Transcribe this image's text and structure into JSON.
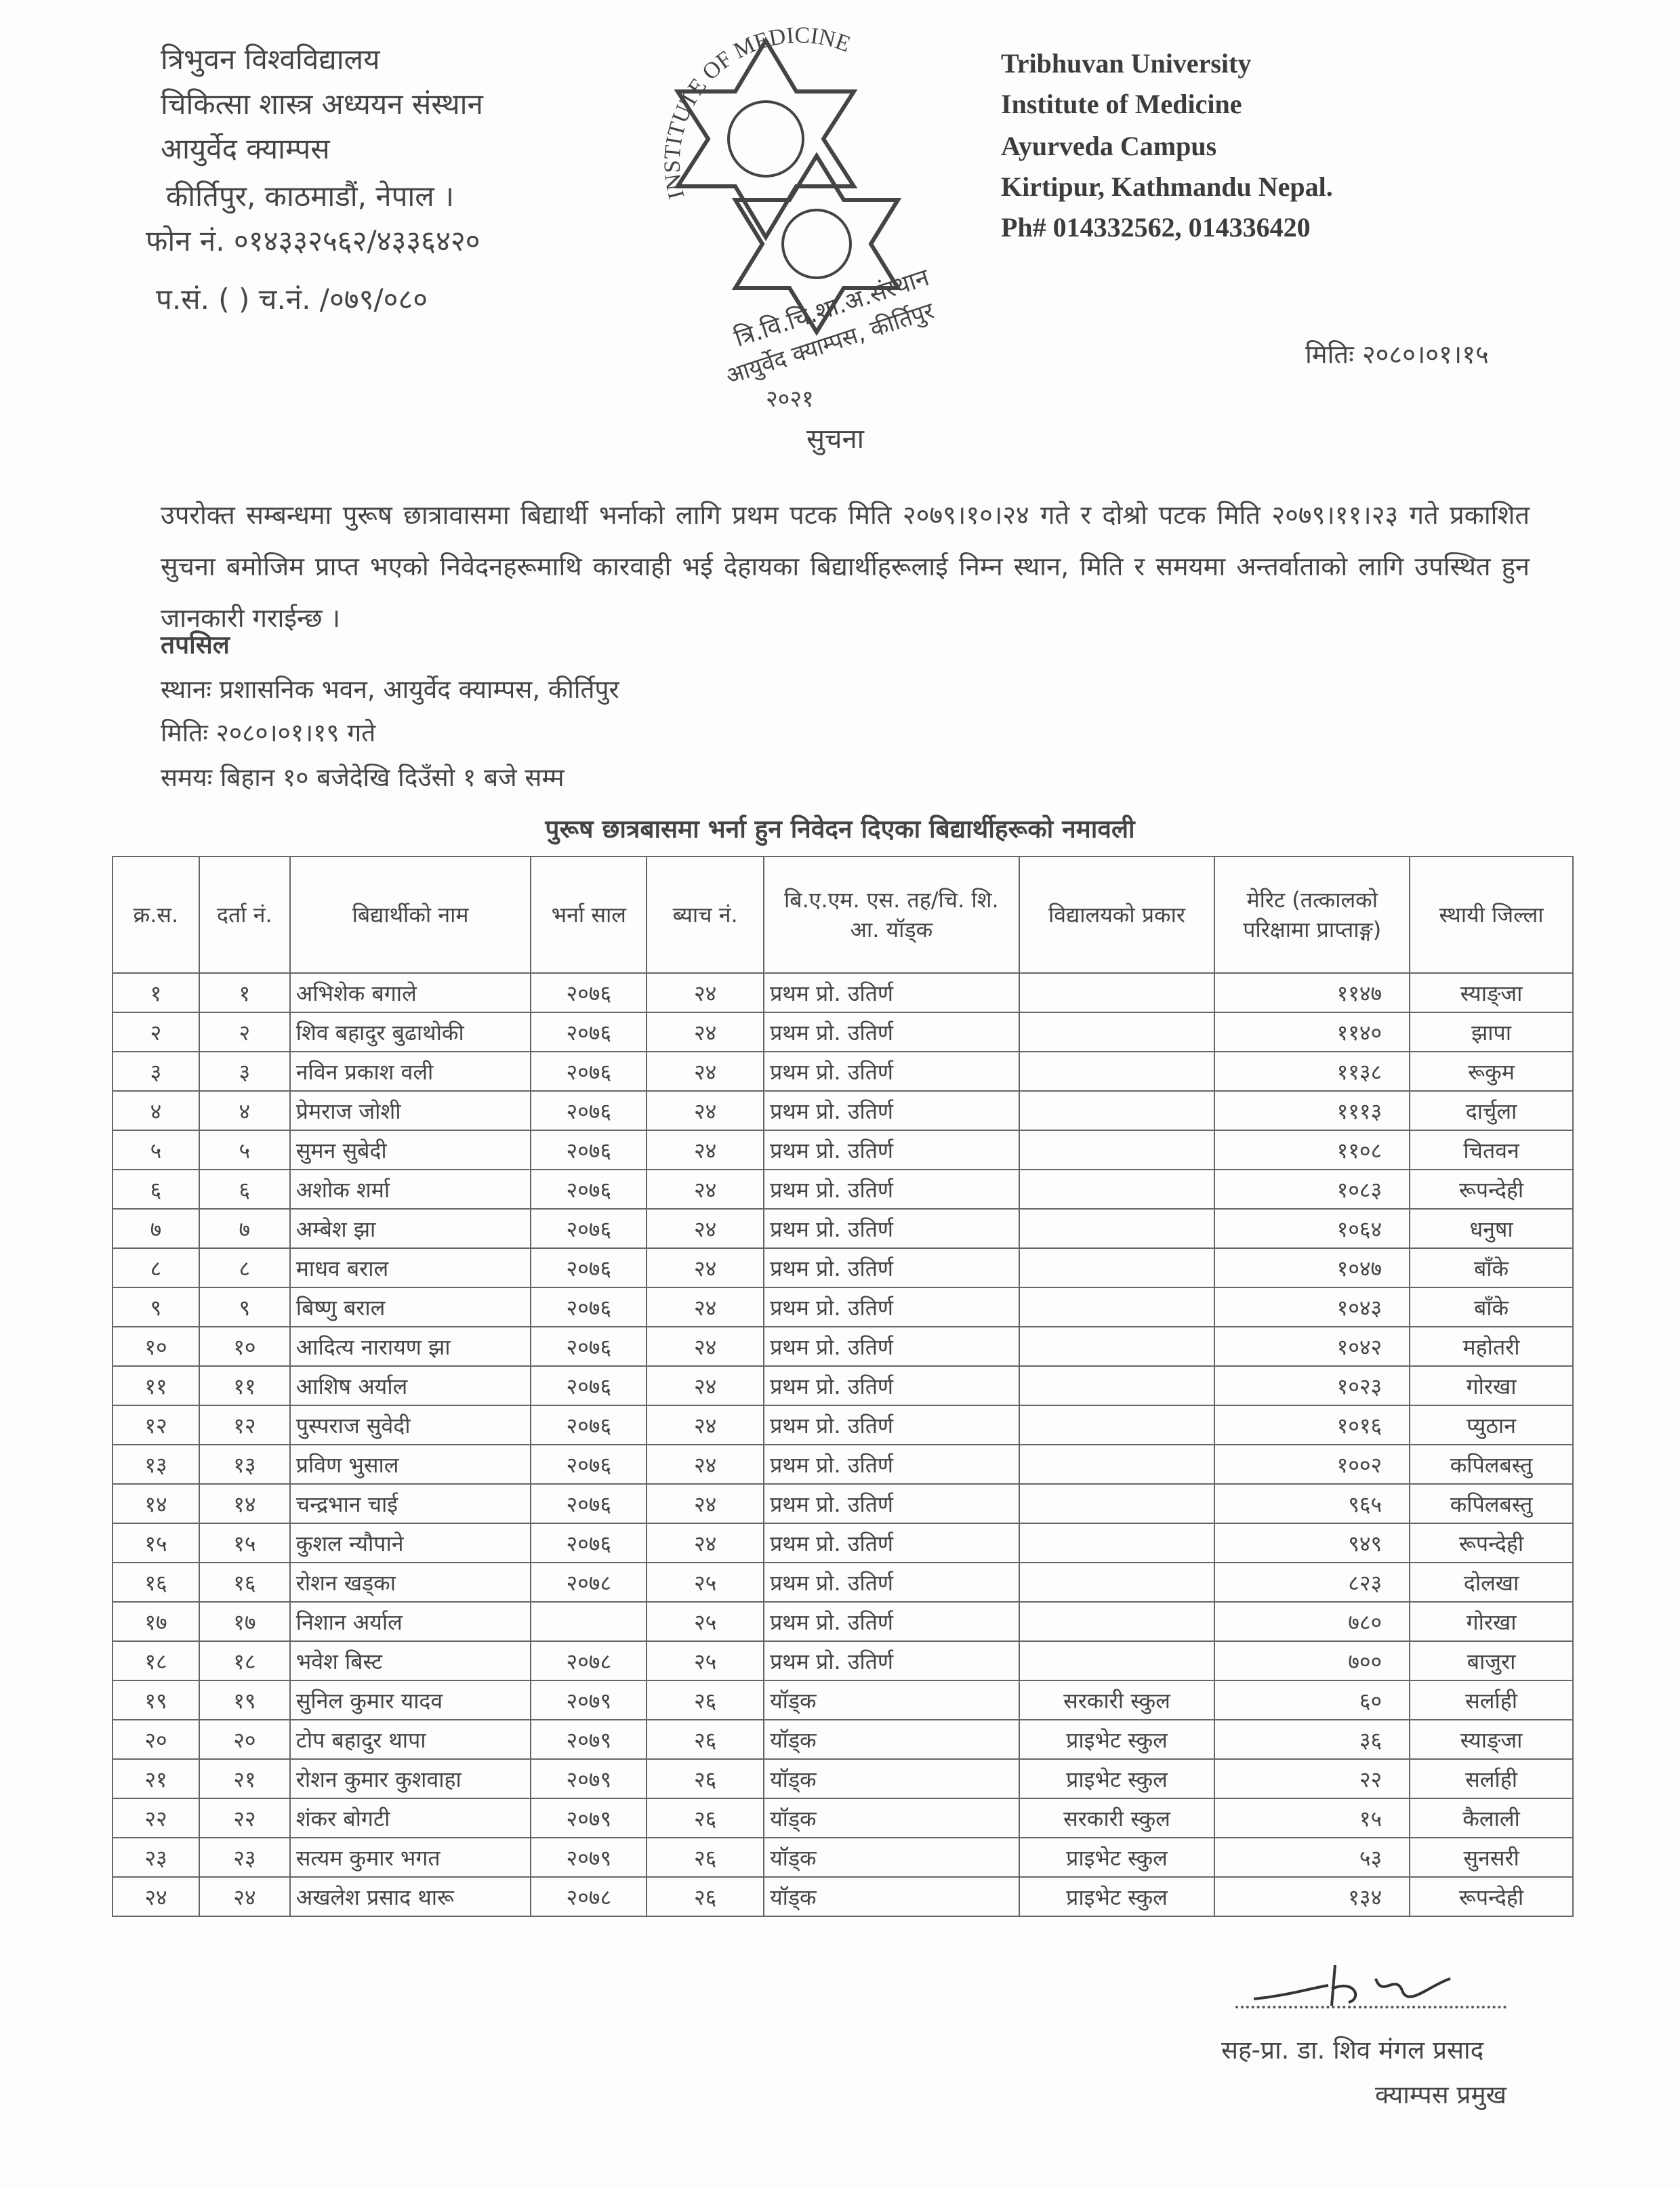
{
  "header_left": {
    "line1": "त्रिभुवन  विश्वविद्यालय",
    "line2": "चिकित्सा  शास्त्र  अध्ययन  संस्थान",
    "line3": "आयुर्वेद  क्याम्पस",
    "line4": "कीर्तिपुर,  काठमाडौं,  नेपाल  ।",
    "phone": "फोन  नं.  ०१४३३२५६२/४३३६४२०",
    "ref": "प.सं. (    ) च.नं.       /०७९/०८०"
  },
  "header_right": {
    "line1": "Tribhuvan University",
    "line2": "Institute of Medicine",
    "line3": "Ayurveda Campus",
    "line4": "Kirtipur, Kathmandu Nepal.",
    "phone": "Ph# 014332562, 014336420"
  },
  "logo": {
    "arc_text": "INSTITUTE OF MEDICINE",
    "stamp_line1": "त्रि.वि.चि.शा.अ.संस्थान",
    "stamp_line2": "आयुर्वेद क्याम्पस, कीर्तिपुर",
    "stamp_line3": "२०२१"
  },
  "date": "मितिः २०८०।०१।१५",
  "notice_title": "सुचना",
  "paragraph": "उपरोक्त सम्बन्धमा पुरूष छात्रावासमा बिद्यार्थी भर्नाको लागि प्रथम पटक मिति २०७९।१०।२४ गते र दोश्रो पटक मिति २०७९।११।२३ गते प्रकाशित सुचना बमोजिम प्राप्त भएको निवेदनहरूमाथि कारवाही भई देहायका बिद्यार्थीहरूलाई निम्न स्थान, मिति र समयमा अन्तर्वाताको लागि उपस्थित हुन जानकारी गराईन्छ ।",
  "details": {
    "heading": "तपसिल",
    "place": "स्थानः प्रशासनिक भवन, आयुर्वेद क्याम्पस, कीर्तिपुर",
    "date": "मितिः २०८०।०१।१९ गते",
    "time": "समयः बिहान १० बजेदेखि दिउँसो १ बजे सम्म"
  },
  "table": {
    "title": "पुरूष छात्रबासमा भर्ना हुन निवेदन दिएका बिद्यार्थीहरूको नमावली",
    "headers": [
      "क्र.स.",
      "दर्ता नं.",
      "बिद्यार्थीको नाम",
      "भर्ना साल",
      "ब्याच नं.",
      "बि.ए.एम. एस. तह/चि. शि. आ. यॉड्क",
      "विद्यालयको प्रकार",
      "मेरिट (तत्कालको परिक्षामा प्राप्ताङ्ग)",
      "स्थायी जिल्ला"
    ],
    "rows": [
      [
        "१",
        "१",
        "अभिशेक बगाले",
        "२०७६",
        "२४",
        "प्रथम प्रो. उतिर्ण",
        "",
        "११४७",
        "स्याङ्जा"
      ],
      [
        "२",
        "२",
        "शिव बहादुर बुढाथोकी",
        "२०७६",
        "२४",
        "प्रथम प्रो. उतिर्ण",
        "",
        "११४०",
        "झापा"
      ],
      [
        "३",
        "३",
        "नविन प्रकाश वली",
        "२०७६",
        "२४",
        "प्रथम प्रो. उतिर्ण",
        "",
        "११३८",
        "रूकुम"
      ],
      [
        "४",
        "४",
        "प्रेमराज जोशी",
        "२०७६",
        "२४",
        "प्रथम प्रो. उतिर्ण",
        "",
        "१११३",
        "दार्चुला"
      ],
      [
        "५",
        "५",
        "सुमन सुबेदी",
        "२०७६",
        "२४",
        "प्रथम प्रो. उतिर्ण",
        "",
        "११०८",
        "चितवन"
      ],
      [
        "६",
        "६",
        "अशोक शर्मा",
        "२०७६",
        "२४",
        "प्रथम प्रो. उतिर्ण",
        "",
        "१०८३",
        "रूपन्देही"
      ],
      [
        "७",
        "७",
        "अम्बेश झा",
        "२०७६",
        "२४",
        "प्रथम प्रो. उतिर्ण",
        "",
        "१०६४",
        "धनुषा"
      ],
      [
        "८",
        "८",
        "माधव बराल",
        "२०७६",
        "२४",
        "प्रथम प्रो. उतिर्ण",
        "",
        "१०४७",
        "बाँके"
      ],
      [
        "९",
        "९",
        "बिष्णु बराल",
        "२०७६",
        "२४",
        "प्रथम प्रो. उतिर्ण",
        "",
        "१०४३",
        "बाँके"
      ],
      [
        "१०",
        "१०",
        "आदित्य नारायण झा",
        "२०७६",
        "२४",
        "प्रथम प्रो. उतिर्ण",
        "",
        "१०४२",
        "महोतरी"
      ],
      [
        "११",
        "११",
        "आशिष अर्याल",
        "२०७६",
        "२४",
        "प्रथम प्रो. उतिर्ण",
        "",
        "१०२३",
        "गोरखा"
      ],
      [
        "१२",
        "१२",
        "पुस्पराज सुवेदी",
        "२०७६",
        "२४",
        "प्रथम प्रो. उतिर्ण",
        "",
        "१०१६",
        "प्युठान"
      ],
      [
        "१३",
        "१३",
        "प्रविण भुसाल",
        "२०७६",
        "२४",
        "प्रथम प्रो. उतिर्ण",
        "",
        "१००२",
        "कपिलबस्तु"
      ],
      [
        "१४",
        "१४",
        "चन्द्रभान चाई",
        "२०७६",
        "२४",
        "प्रथम प्रो. उतिर्ण",
        "",
        "९६५",
        "कपिलबस्तु"
      ],
      [
        "१५",
        "१५",
        "कुशल न्यौपाने",
        "२०७६",
        "२४",
        "प्रथम प्रो. उतिर्ण",
        "",
        "९४९",
        "रूपन्देही"
      ],
      [
        "१६",
        "१६",
        "रोशन खड्का",
        "२०७८",
        "२५",
        "प्रथम प्रो. उतिर्ण",
        "",
        "८२३",
        "दोलखा"
      ],
      [
        "१७",
        "१७",
        "निशान अर्याल",
        "",
        "२५",
        "प्रथम प्रो. उतिर्ण",
        "",
        "७८०",
        "गोरखा"
      ],
      [
        "१८",
        "१८",
        "भवेश बिस्ट",
        "२०७८",
        "२५",
        "प्रथम प्रो. उतिर्ण",
        "",
        "७००",
        "बाजुरा"
      ],
      [
        "१९",
        "१९",
        "सुनिल कुमार यादव",
        "२०७९",
        "२६",
        "यॉड्क",
        "सरकारी स्कुल",
        "६०",
        "सर्लाही"
      ],
      [
        "२०",
        "२०",
        "टोप बहादुर थापा",
        "२०७९",
        "२६",
        "यॉड्क",
        "प्राइभेट स्कुल",
        "३६",
        "स्याङ्जा"
      ],
      [
        "२१",
        "२१",
        "रोशन कुमार कुशवाहा",
        "२०७९",
        "२६",
        "यॉड्क",
        "प्राइभेट स्कुल",
        "२२",
        "सर्लाही"
      ],
      [
        "२२",
        "२२",
        "शंकर बोगटी",
        "२०७९",
        "२६",
        "यॉड्क",
        "सरकारी स्कुल",
        "१५",
        "कैलाली"
      ],
      [
        "२३",
        "२३",
        "सत्यम कुमार भगत",
        "२०७९",
        "२६",
        "यॉड्क",
        "प्राइभेट स्कुल",
        "५३",
        "सुनसरी"
      ],
      [
        "२४",
        "२४",
        "अखलेश प्रसाद थारू",
        "२०७८",
        "२६",
        "यॉड्क",
        "प्राइभेट स्कुल",
        "१३४",
        "रूपन्देही"
      ]
    ]
  },
  "signature": {
    "name": "सह-प्रा. डा. शिव मंगल प्रसाद",
    "title": "क्याम्पस प्रमुख"
  }
}
